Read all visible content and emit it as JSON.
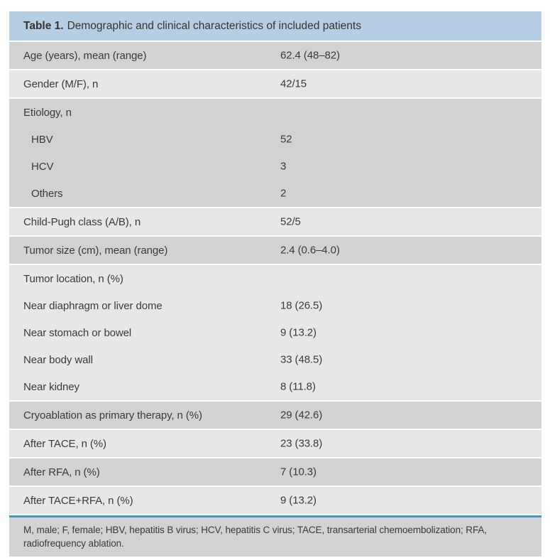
{
  "table": {
    "title": {
      "label": "Table 1.",
      "text": "Demographic and clinical characteristics of included patients"
    },
    "colors": {
      "header_bg": "#b6cee4",
      "row_dark": "#d1d2d4",
      "row_light": "#e7e7e8",
      "rule_blue": "#4792c5",
      "text": "#3a3a3a"
    },
    "rows": [
      {
        "label": "Age (years), mean (range)",
        "value": "62.4 (48–82)"
      },
      {
        "label": "Gender (M/F), n",
        "value": "42/15"
      },
      {
        "lines": [
          {
            "label": "Etiology, n",
            "value": ""
          },
          {
            "label": "HBV",
            "value": "52"
          },
          {
            "label": "HCV",
            "value": "3"
          },
          {
            "label": "Others",
            "value": "2"
          }
        ]
      },
      {
        "label": "Child-Pugh class (A/B), n",
        "value": "52/5"
      },
      {
        "label": "Tumor size (cm), mean (range)",
        "value": "2.4 (0.6–4.0)"
      },
      {
        "lines": [
          {
            "label": "Tumor location, n (%)",
            "value": ""
          },
          {
            "label": "Near diaphragm or liver dome",
            "value": "18 (26.5)"
          },
          {
            "label": "Near stomach or bowel",
            "value": "9 (13.2)"
          },
          {
            "label": "Near body wall",
            "value": "33 (48.5)"
          },
          {
            "label": "Near kidney",
            "value": "8 (11.8)"
          }
        ]
      },
      {
        "label": "Cryoablation as primary therapy, n (%)",
        "value": "29 (42.6)"
      },
      {
        "label": "After TACE, n (%)",
        "value": "23 (33.8)"
      },
      {
        "label": "After RFA, n (%)",
        "value": "7 (10.3)"
      },
      {
        "label": "After TACE+RFA, n (%)",
        "value": "9 (13.2)"
      }
    ],
    "footnote": "M, male; F, female; HBV, hepatitis B virus; HCV, hepatitis C virus; TACE, transarterial chemoembolization; RFA, radiofrequency ablation."
  }
}
